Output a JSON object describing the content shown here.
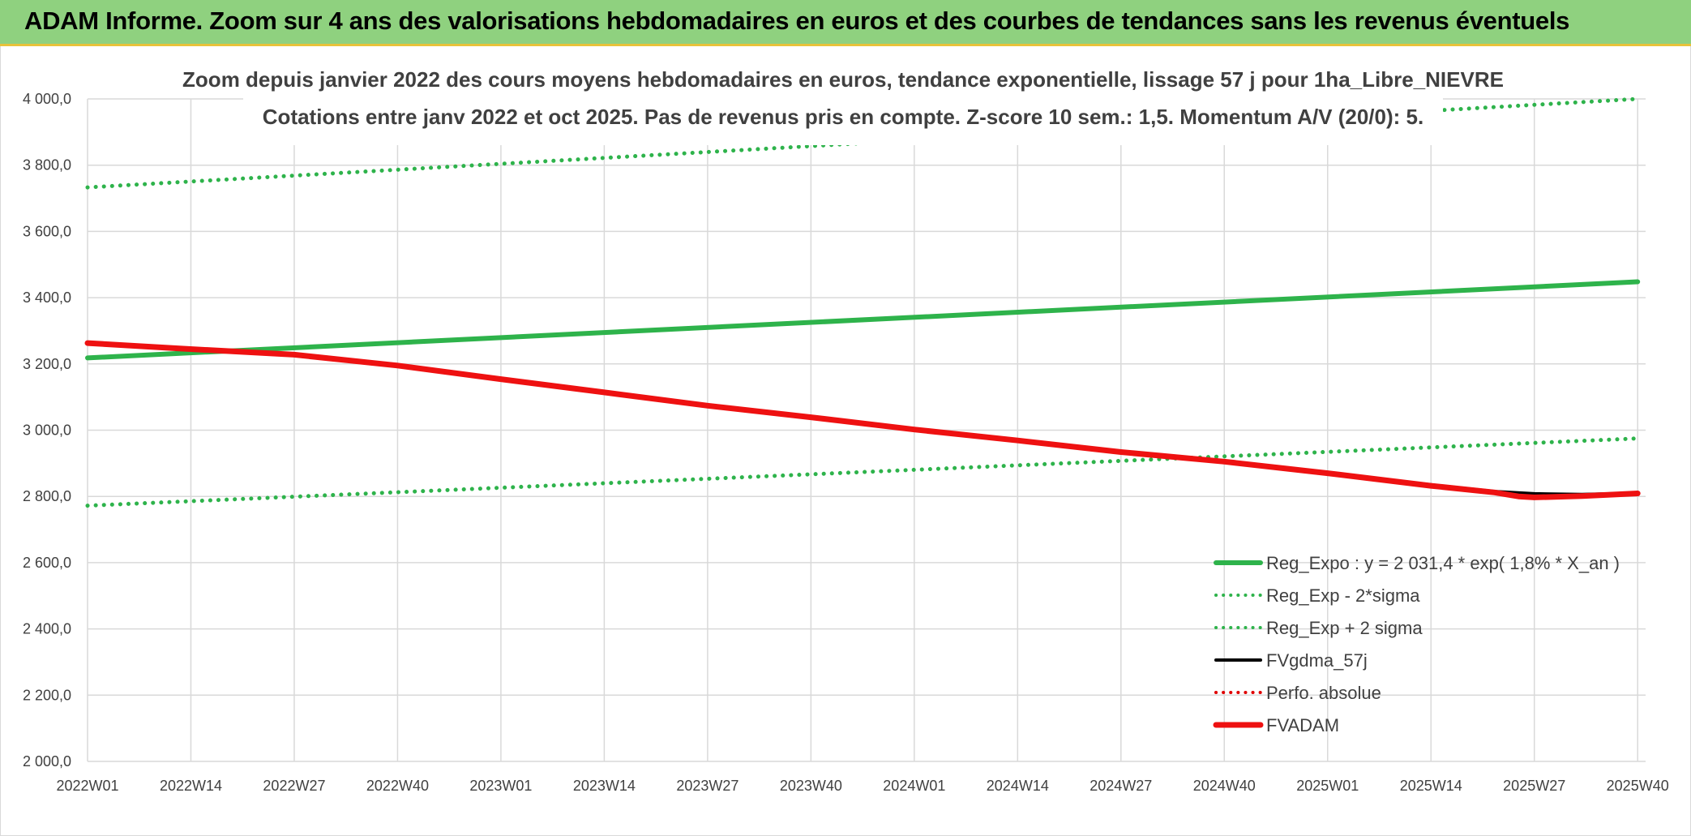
{
  "header": {
    "title": "ADAM Informe. Zoom sur 4 ans des valorisations hebdomadaires en euros et des courbes de tendances sans les revenus éventuels"
  },
  "chart_data": {
    "type": "line",
    "title": "Zoom depuis janvier 2022 des cours moyens hebdomadaires en euros, tendance exponentielle, lissage 57 j pour 1ha_Libre_NIEVRE",
    "subtitle": "Cotations entre janv 2022 et oct 2025. Pas de revenus pris en compte. Z-score 10 sem.: 1,5. Momentum A/V (20/0): 5.",
    "x_tick_labels": [
      "2022W01",
      "2022W14",
      "2022W27",
      "2022W40",
      "2023W01",
      "2023W14",
      "2023W27",
      "2023W40",
      "2024W01",
      "2024W14",
      "2024W27",
      "2024W40",
      "2025W01",
      "2025W14",
      "2025W27",
      "2025W40"
    ],
    "x_range_weeks": [
      0,
      196
    ],
    "ylim": [
      2000,
      4000
    ],
    "y_tick_labels": [
      "2 000,0",
      "2 200,0",
      "2 400,0",
      "2 600,0",
      "2 800,0",
      "3 000,0",
      "3 200,0",
      "3 400,0",
      "3 600,0",
      "3 800,0",
      "4 000,0"
    ],
    "y_ticks": [
      2000,
      2200,
      2400,
      2600,
      2800,
      3000,
      3200,
      3400,
      3600,
      3800,
      4000
    ],
    "grid": true,
    "legend_position": "bottom-right",
    "series": [
      {
        "name": "Reg_Expo : y = 2 031,4 * exp( 1,8% *  X_an )",
        "color": "#2eb34b",
        "style": "solid",
        "width": 6,
        "points": [
          [
            0,
            3218
          ],
          [
            195,
            3448
          ]
        ]
      },
      {
        "name": "Reg_Exp - 2*sigma",
        "color": "#2eb34b",
        "style": "dotted",
        "width": 5,
        "points": [
          [
            0,
            2772
          ],
          [
            195,
            2975
          ]
        ]
      },
      {
        "name": "Reg_Exp + 2 sigma",
        "color": "#2eb34b",
        "style": "dotted",
        "width": 5,
        "points": [
          [
            0,
            3733
          ],
          [
            195,
            4000
          ]
        ]
      },
      {
        "name": "FVgdma_57j",
        "color": "#000000",
        "style": "solid",
        "width": 4,
        "points": [
          [
            0,
            3262
          ],
          [
            12,
            3245
          ],
          [
            26,
            3228
          ],
          [
            39,
            3196
          ],
          [
            52,
            3155
          ],
          [
            65,
            3115
          ],
          [
            78,
            3075
          ],
          [
            91,
            3040
          ],
          [
            104,
            3003
          ],
          [
            117,
            2970
          ],
          [
            130,
            2935
          ],
          [
            143,
            2906
          ],
          [
            156,
            2872
          ],
          [
            169,
            2835
          ],
          [
            177,
            2815
          ],
          [
            182,
            2808
          ],
          [
            188,
            2806
          ],
          [
            195,
            2810
          ]
        ]
      },
      {
        "name": "Perfo. absolue",
        "color": "#e00000",
        "style": "dotted",
        "width": 4,
        "points": []
      },
      {
        "name": "FVADAM",
        "color": "#ee1111",
        "style": "solid",
        "width": 7,
        "points": [
          [
            0,
            3263
          ],
          [
            12,
            3246
          ],
          [
            26,
            3228
          ],
          [
            39,
            3195
          ],
          [
            52,
            3154
          ],
          [
            65,
            3114
          ],
          [
            78,
            3074
          ],
          [
            91,
            3039
          ],
          [
            104,
            3002
          ],
          [
            117,
            2969
          ],
          [
            130,
            2934
          ],
          [
            143,
            2905
          ],
          [
            156,
            2870
          ],
          [
            169,
            2832
          ],
          [
            177,
            2812
          ],
          [
            180,
            2800
          ],
          [
            182,
            2797
          ],
          [
            188,
            2801
          ],
          [
            195,
            2809
          ]
        ]
      }
    ]
  }
}
